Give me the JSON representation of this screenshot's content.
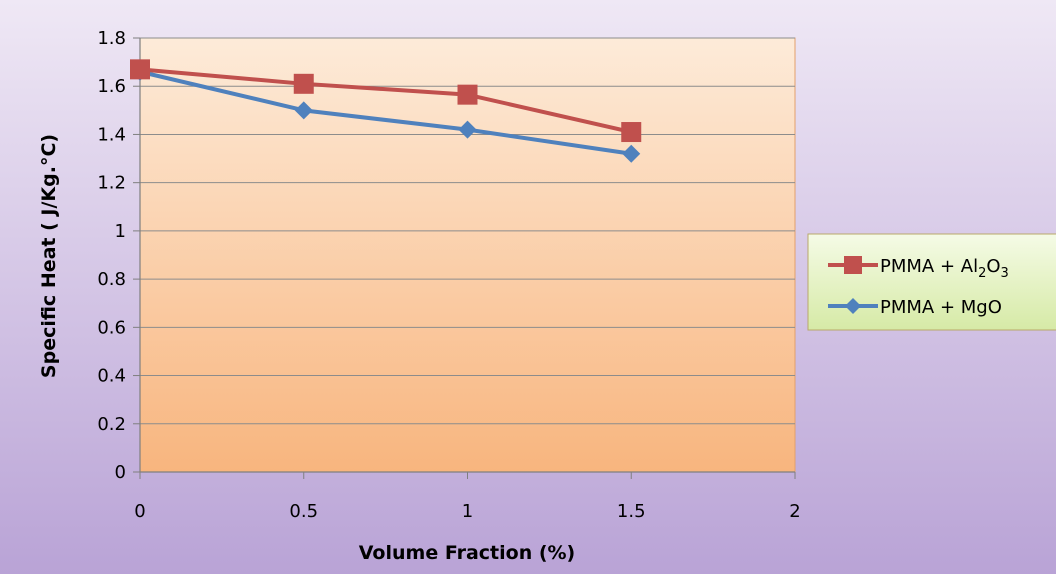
{
  "chart_data": {
    "type": "line",
    "title": "",
    "xlabel": "Volume Fraction  (%)",
    "ylabel": "Specific Heat  ( J/Kg.°C)",
    "xlim": [
      0,
      2
    ],
    "ylim": [
      0,
      1.8
    ],
    "x_ticks": [
      "0",
      "0.5",
      "1",
      "1.5",
      "2"
    ],
    "y_ticks": [
      "0",
      "0.2",
      "0.4",
      "0.6",
      "0.8",
      "1",
      "1.2",
      "1.4",
      "1.6",
      "1.8"
    ],
    "grid": "horizontal",
    "legend_position": "right",
    "series": [
      {
        "name": "PMMA + Al2O3",
        "color": "#c0504d",
        "marker": "square",
        "x": [
          0,
          0.5,
          1,
          1.5
        ],
        "y": [
          1.67,
          1.61,
          1.565,
          1.41
        ]
      },
      {
        "name": "PMMA + MgO",
        "color": "#4f81bd",
        "marker": "diamond",
        "x": [
          0,
          0.5,
          1,
          1.5
        ],
        "y": [
          1.66,
          1.5,
          1.42,
          1.32
        ]
      }
    ]
  }
}
